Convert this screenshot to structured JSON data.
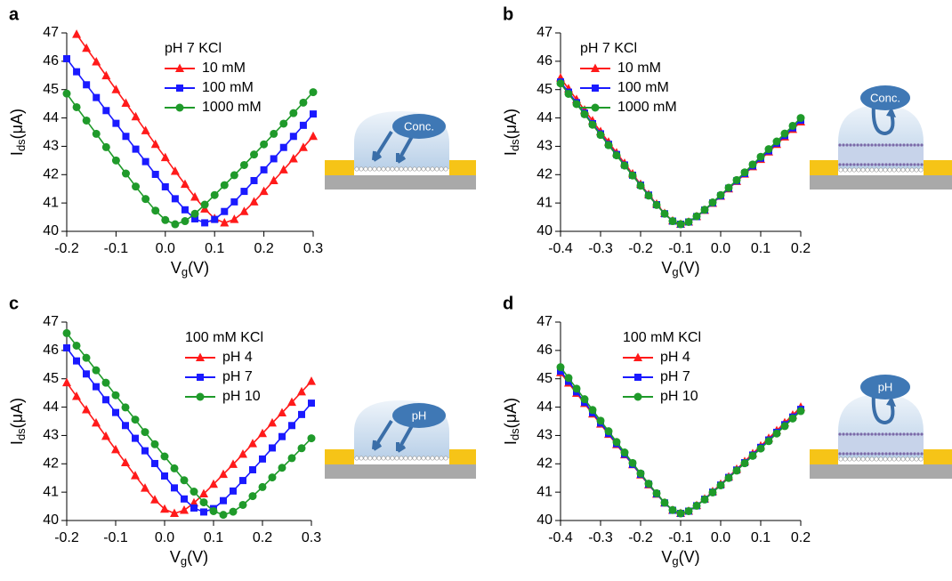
{
  "chart_data": [
    {
      "type": "line",
      "panel": "a",
      "legend_title": "pH 7 KCl",
      "inset_label": "Conc.",
      "xlabel": {
        "main": "V",
        "sub": "g",
        "unit": "(V)"
      },
      "ylabel": {
        "main": "I",
        "sub": "ds",
        "unit": "(μA)"
      },
      "xlim": [
        -0.2,
        0.3
      ],
      "xticks": [
        -0.2,
        -0.1,
        {
          "value": 0,
          "label": "0.0"
        },
        0.1,
        0.2,
        0.3
      ],
      "ylim": [
        40,
        47
      ],
      "yticks": [
        40,
        41,
        42,
        43,
        44,
        45,
        46,
        47
      ],
      "x": [
        -0.2,
        -0.18,
        -0.16,
        -0.14,
        -0.12,
        -0.1,
        -0.08,
        -0.06,
        -0.04,
        -0.02,
        0,
        0.02,
        0.04,
        0.06,
        0.08,
        0.1,
        0.12,
        0.14,
        0.16,
        0.18,
        0.2,
        0.22,
        0.24,
        0.26,
        0.28,
        0.3
      ],
      "series": [
        {
          "name": "10 mM",
          "color": "#ff1a1a",
          "marker": "triangle",
          "values": [
            null,
            46.95,
            46.46,
            45.98,
            45.49,
            45.0,
            44.52,
            44.04,
            43.55,
            43.07,
            42.6,
            42.12,
            41.66,
            41.21,
            40.79,
            40.45,
            40.3,
            40.42,
            40.7,
            41.04,
            41.41,
            41.79,
            42.17,
            42.56,
            42.96,
            43.35
          ]
        },
        {
          "name": "100 mM",
          "color": "#1a1aff",
          "marker": "square",
          "values": [
            46.09,
            45.63,
            45.17,
            44.72,
            44.26,
            43.81,
            43.35,
            42.9,
            42.46,
            42.01,
            41.57,
            41.15,
            40.76,
            40.44,
            40.3,
            40.42,
            40.7,
            41.04,
            41.41,
            41.79,
            42.17,
            42.56,
            42.96,
            43.35,
            43.74,
            44.14
          ]
        },
        {
          "name": "1000 mM",
          "color": "#1f9a2a",
          "marker": "circle",
          "values": [
            44.86,
            44.38,
            43.91,
            43.44,
            42.97,
            42.5,
            42.04,
            41.58,
            41.14,
            40.73,
            40.4,
            40.25,
            40.36,
            40.62,
            40.94,
            41.28,
            41.63,
            41.98,
            42.34,
            42.71,
            43.07,
            43.44,
            43.8,
            44.17,
            44.54,
            44.91
          ]
        }
      ]
    },
    {
      "type": "line",
      "panel": "b",
      "legend_title": "pH 7 KCl",
      "inset_label": "Conc.",
      "xlabel": {
        "main": "V",
        "sub": "g",
        "unit": "(V)"
      },
      "ylabel": {
        "main": "I",
        "sub": "ds",
        "unit": "(μA)"
      },
      "xlim": [
        -0.4,
        0.2
      ],
      "xticks": [
        -0.4,
        -0.3,
        -0.2,
        -0.1,
        {
          "value": 0,
          "label": "0.0"
        },
        0.1,
        0.2
      ],
      "ylim": [
        40,
        47
      ],
      "yticks": [
        40,
        41,
        42,
        43,
        44,
        45,
        46,
        47
      ],
      "x": [
        -0.4,
        -0.38,
        -0.36,
        -0.34,
        -0.32,
        -0.3,
        -0.28,
        -0.26,
        -0.24,
        -0.22,
        -0.2,
        -0.18,
        -0.16,
        -0.14,
        -0.12,
        -0.1,
        -0.08,
        -0.06,
        -0.04,
        -0.02,
        0,
        0.02,
        0.04,
        0.06,
        0.08,
        0.1,
        0.12,
        0.14,
        0.16,
        0.18,
        0.2
      ],
      "series": [
        {
          "name": "10 mM",
          "color": "#ff1a1a",
          "marker": "triangle",
          "values": [
            45.41,
            45.03,
            44.65,
            44.28,
            43.9,
            43.52,
            43.15,
            42.77,
            42.4,
            42.03,
            41.66,
            41.3,
            40.96,
            40.63,
            40.37,
            40.25,
            40.33,
            40.52,
            40.74,
            40.99,
            41.24,
            41.5,
            41.76,
            42.02,
            42.28,
            42.54,
            42.8,
            43.07,
            43.33,
            43.6,
            43.86
          ]
        },
        {
          "name": "100 mM",
          "color": "#1a1aff",
          "marker": "square",
          "values": [
            45.27,
            44.91,
            44.54,
            44.17,
            43.8,
            43.44,
            43.07,
            42.71,
            42.34,
            41.98,
            41.63,
            41.28,
            40.94,
            40.62,
            40.36,
            40.25,
            40.33,
            40.52,
            40.75,
            41.0,
            41.25,
            41.52,
            41.78,
            42.04,
            42.31,
            42.58,
            42.84,
            43.11,
            43.38,
            43.65,
            43.92
          ]
        },
        {
          "name": "1000 mM",
          "color": "#1f9a2a",
          "marker": "circle",
          "values": [
            45.22,
            44.85,
            44.49,
            44.13,
            43.76,
            43.4,
            43.04,
            42.68,
            42.32,
            41.97,
            41.61,
            41.26,
            40.93,
            40.62,
            40.36,
            40.25,
            40.33,
            40.53,
            40.76,
            41.02,
            41.28,
            41.54,
            41.81,
            42.08,
            42.36,
            42.63,
            42.9,
            43.17,
            43.45,
            43.72,
            44.0
          ]
        }
      ]
    },
    {
      "type": "line",
      "panel": "c",
      "legend_title": "100 mM KCl",
      "inset_label": "pH",
      "xlabel": {
        "main": "V",
        "sub": "g",
        "unit": "(V)"
      },
      "ylabel": {
        "main": "I",
        "sub": "ds",
        "unit": "(μA)"
      },
      "xlim": [
        -0.2,
        0.3
      ],
      "xticks": [
        -0.2,
        -0.1,
        {
          "value": 0,
          "label": "0.0"
        },
        0.1,
        0.2,
        0.3
      ],
      "ylim": [
        40,
        47
      ],
      "yticks": [
        40,
        41,
        42,
        43,
        44,
        45,
        46,
        47
      ],
      "x": [
        -0.2,
        -0.18,
        -0.16,
        -0.14,
        -0.12,
        -0.1,
        -0.08,
        -0.06,
        -0.04,
        -0.02,
        0,
        0.02,
        0.04,
        0.06,
        0.08,
        0.1,
        0.12,
        0.14,
        0.16,
        0.18,
        0.2,
        0.22,
        0.24,
        0.26,
        0.28,
        0.3
      ],
      "series": [
        {
          "name": "pH 4",
          "color": "#ff1a1a",
          "marker": "triangle",
          "values": [
            44.86,
            44.38,
            43.91,
            43.44,
            42.97,
            42.5,
            42.04,
            41.58,
            41.14,
            40.73,
            40.4,
            40.25,
            40.36,
            40.62,
            40.94,
            41.28,
            41.63,
            41.98,
            42.34,
            42.71,
            43.07,
            43.44,
            43.8,
            44.17,
            44.54,
            44.91
          ]
        },
        {
          "name": "pH 7",
          "color": "#1a1aff",
          "marker": "square",
          "values": [
            46.09,
            45.63,
            45.17,
            44.72,
            44.26,
            43.81,
            43.35,
            42.9,
            42.46,
            42.01,
            41.57,
            41.15,
            40.76,
            40.44,
            40.3,
            40.42,
            40.7,
            41.04,
            41.41,
            41.79,
            42.17,
            42.56,
            42.96,
            43.35,
            43.74,
            44.14
          ]
        },
        {
          "name": "pH 10",
          "color": "#1f9a2a",
          "marker": "circle",
          "values": [
            46.61,
            46.17,
            45.74,
            45.3,
            44.86,
            44.42,
            43.99,
            43.56,
            43.12,
            42.69,
            42.26,
            41.84,
            41.42,
            41.02,
            40.64,
            40.33,
            40.2,
            40.31,
            40.55,
            40.86,
            41.18,
            41.52,
            41.86,
            42.2,
            42.55,
            42.9
          ]
        }
      ]
    },
    {
      "type": "line",
      "panel": "d",
      "legend_title": "100 mM KCl",
      "inset_label": "pH",
      "xlabel": {
        "main": "V",
        "sub": "g",
        "unit": "(V)"
      },
      "ylabel": {
        "main": "I",
        "sub": "ds",
        "unit": "(μA)"
      },
      "xlim": [
        -0.4,
        0.2
      ],
      "xticks": [
        -0.4,
        -0.3,
        -0.2,
        -0.1,
        {
          "value": 0,
          "label": "0.0"
        },
        0.1,
        0.2
      ],
      "ylim": [
        40,
        47
      ],
      "yticks": [
        40,
        41,
        42,
        43,
        44,
        45,
        46,
        47
      ],
      "x": [
        -0.4,
        -0.38,
        -0.36,
        -0.34,
        -0.32,
        -0.3,
        -0.28,
        -0.26,
        -0.24,
        -0.22,
        -0.2,
        -0.18,
        -0.16,
        -0.14,
        -0.12,
        -0.1,
        -0.08,
        -0.06,
        -0.04,
        -0.02,
        0,
        0.02,
        0.04,
        0.06,
        0.08,
        0.1,
        0.12,
        0.14,
        0.16,
        0.18,
        0.2
      ],
      "series": [
        {
          "name": "pH 4",
          "color": "#ff1a1a",
          "marker": "triangle",
          "values": [
            45.22,
            44.85,
            44.49,
            44.13,
            43.76,
            43.4,
            43.04,
            42.68,
            42.32,
            41.97,
            41.61,
            41.26,
            40.93,
            40.62,
            40.36,
            40.25,
            40.33,
            40.53,
            40.76,
            41.02,
            41.28,
            41.54,
            41.81,
            42.08,
            42.36,
            42.63,
            42.9,
            43.17,
            43.45,
            43.72,
            44.0
          ]
        },
        {
          "name": "pH 7",
          "color": "#1a1aff",
          "marker": "square",
          "values": [
            45.27,
            44.91,
            44.54,
            44.17,
            43.8,
            43.44,
            43.07,
            42.71,
            42.34,
            41.98,
            41.63,
            41.28,
            40.94,
            40.62,
            40.36,
            40.25,
            40.33,
            40.52,
            40.75,
            41.0,
            41.25,
            41.52,
            41.78,
            42.04,
            42.31,
            42.58,
            42.84,
            43.11,
            43.38,
            43.65,
            43.92
          ]
        },
        {
          "name": "pH 10",
          "color": "#1f9a2a",
          "marker": "circle",
          "values": [
            45.41,
            45.03,
            44.65,
            44.28,
            43.9,
            43.52,
            43.15,
            42.77,
            42.4,
            42.03,
            41.66,
            41.3,
            40.96,
            40.63,
            40.37,
            40.25,
            40.33,
            40.52,
            40.74,
            40.99,
            41.24,
            41.5,
            41.76,
            42.02,
            42.28,
            42.54,
            42.8,
            43.07,
            43.33,
            43.6,
            43.86
          ]
        }
      ]
    }
  ]
}
